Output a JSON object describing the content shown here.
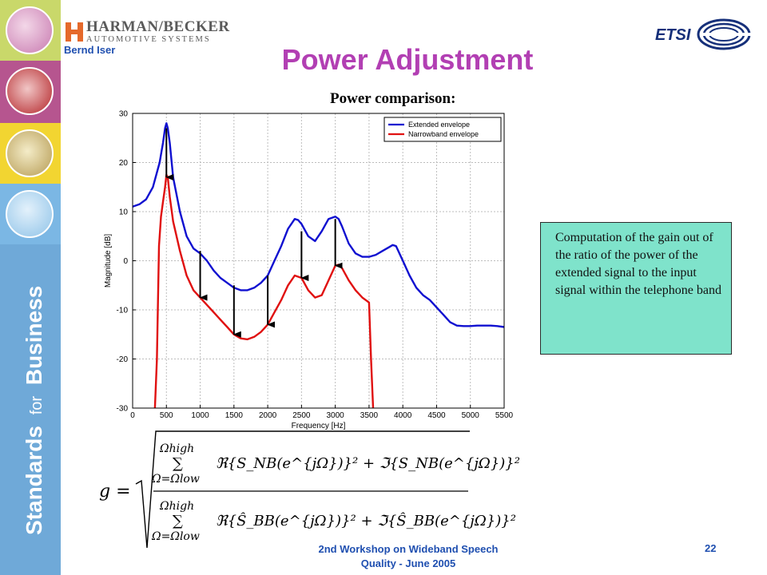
{
  "slide": {
    "title": "Power Adjustment",
    "author": "Bernd Iser",
    "logo_line1": "HARMAN/BECKER",
    "logo_line2": "AUTOMOTIVE SYSTEMS",
    "etsi_logo": "ETSI",
    "sidebar_slogan": {
      "w1": "Standards",
      "w2": "for",
      "w3": "Business"
    },
    "note": "Computation of the gain out of the ratio of the power of the extended signal to the input signal within the telephone band",
    "footer_line1": "2nd Workshop on Wideband Speech",
    "footer_line2": "Quality - June 2005",
    "page_number": "22",
    "formula": {
      "lhs": "g =",
      "sum": "∑",
      "upper": "Ωhigh",
      "lower": "Ω=Ωlow",
      "numerator": "ℜ{S_NB(e^{jΩ})}² + ℑ{S_NB(e^{jΩ})}²",
      "denominator": "ℜ{Ŝ_BB(e^{jΩ})}² + ℑ{Ŝ_BB(e^{jΩ})}²"
    },
    "colors": {
      "title": "#b23fb3",
      "footer": "#1f4fb0",
      "note_bg": "#7fe3cb",
      "sidebar": "#6fa9d8"
    }
  },
  "chart_data": {
    "type": "line",
    "title": "Power comparison:",
    "xlabel": "Frequency [Hz]",
    "ylabel": "Magnitude [dB]",
    "xlim": [
      0,
      5500
    ],
    "ylim": [
      -30,
      30
    ],
    "xticks": [
      0,
      500,
      1000,
      1500,
      2000,
      2500,
      3000,
      3500,
      4000,
      4500,
      5000,
      5500
    ],
    "yticks": [
      -30,
      -20,
      -10,
      0,
      10,
      20,
      30
    ],
    "grid": true,
    "legend_position": "top-right",
    "series": [
      {
        "name": "Extended envelope",
        "color": "#1010d0",
        "x": [
          0,
          100,
          200,
          300,
          400,
          450,
          480,
          500,
          520,
          550,
          600,
          700,
          800,
          900,
          1000,
          1100,
          1200,
          1300,
          1400,
          1500,
          1600,
          1700,
          1800,
          1900,
          2000,
          2100,
          2200,
          2300,
          2400,
          2450,
          2500,
          2600,
          2700,
          2800,
          2900,
          3000,
          3050,
          3100,
          3200,
          3300,
          3400,
          3500,
          3600,
          3700,
          3800,
          3850,
          3900,
          4000,
          4100,
          4200,
          4300,
          4400,
          4500,
          4600,
          4700,
          4800,
          4900,
          5000,
          5100,
          5200,
          5300,
          5400,
          5500
        ],
        "y": [
          11,
          11.5,
          12.5,
          15,
          20,
          24,
          27,
          28,
          27,
          24,
          17,
          10,
          5,
          2.5,
          1.5,
          0,
          -2,
          -3.5,
          -4.5,
          -5.5,
          -6,
          -6,
          -5.5,
          -4.5,
          -3,
          0,
          3,
          6.5,
          8.5,
          8.3,
          7.5,
          5,
          4,
          6,
          8.5,
          9,
          8.5,
          7,
          3.5,
          1.5,
          0.8,
          0.8,
          1.2,
          2,
          2.8,
          3.2,
          3,
          0,
          -3,
          -5.5,
          -7,
          -8,
          -9.5,
          -11,
          -12.5,
          -13.2,
          -13.3,
          -13.3,
          -13.2,
          -13.2,
          -13.2,
          -13.3,
          -13.5
        ]
      },
      {
        "name": "Narrowband envelope",
        "color": "#e01010",
        "x": [
          330,
          360,
          390,
          420,
          450,
          480,
          500,
          520,
          550,
          600,
          700,
          800,
          900,
          1000,
          1100,
          1200,
          1300,
          1400,
          1500,
          1600,
          1700,
          1800,
          1900,
          2000,
          2100,
          2200,
          2300,
          2400,
          2500,
          2600,
          2700,
          2800,
          2900,
          3000,
          3050,
          3100,
          3200,
          3300,
          3400,
          3450,
          3480,
          3500,
          3530,
          3560
        ],
        "y": [
          -30,
          -20,
          3,
          9,
          12,
          15,
          17.5,
          17,
          13,
          8,
          2,
          -3,
          -6,
          -7.5,
          -9,
          -10.5,
          -12,
          -13.5,
          -15,
          -15.8,
          -16,
          -15.5,
          -14.5,
          -13,
          -10.5,
          -8,
          -5,
          -3,
          -3.5,
          -6,
          -7.5,
          -7,
          -4,
          -1,
          -0.8,
          -1.5,
          -4,
          -6,
          -7.5,
          -8,
          -8.3,
          -8.5,
          -20,
          -30
        ]
      }
    ],
    "arrows": [
      {
        "x": 500,
        "y_from": 27,
        "y_to": 17
      },
      {
        "x": 1000,
        "y_from": 2,
        "y_to": -7.5
      },
      {
        "x": 1500,
        "y_from": -5,
        "y_to": -15
      },
      {
        "x": 2000,
        "y_from": -3,
        "y_to": -13
      },
      {
        "x": 2500,
        "y_from": 6,
        "y_to": -3.5
      },
      {
        "x": 3000,
        "y_from": 8.5,
        "y_to": -1
      }
    ]
  }
}
